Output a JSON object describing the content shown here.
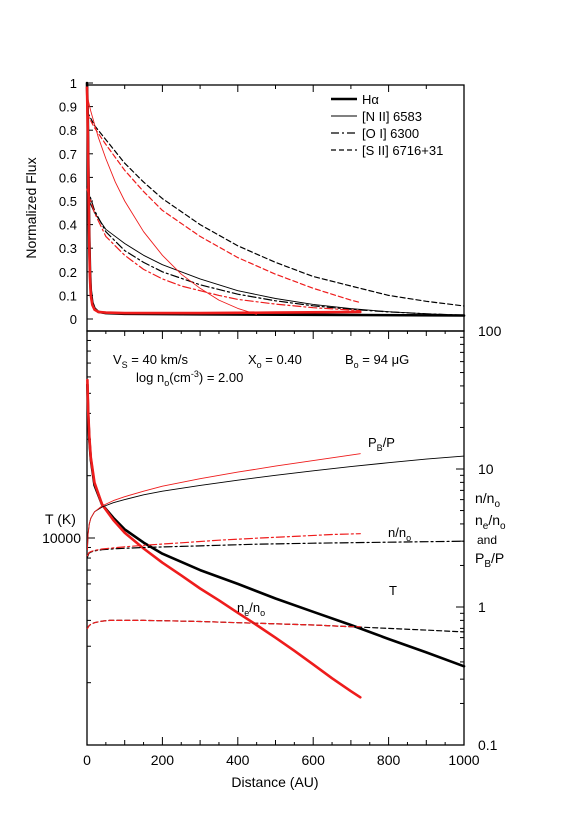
{
  "chart_data": [
    {
      "type": "line",
      "panel": "top",
      "ylabel": "Normalized Flux",
      "xlim": [
        0,
        1000
      ],
      "ylim": [
        0,
        1
      ],
      "y_ticks": [
        0,
        0.1,
        0.2,
        0.3,
        0.4,
        0.5,
        0.6,
        0.7,
        0.8,
        0.9,
        1
      ],
      "y_tick_labels": [
        "0",
        "0.1",
        "0.2",
        "0.3",
        "0.4",
        "0.5",
        "0.6",
        "0.7",
        "0.8",
        "0.9",
        "1"
      ],
      "legend_position": "top-right",
      "legend": [
        {
          "label": "Hα",
          "style": "thick"
        },
        {
          "label": "[N II] 6583",
          "style": "thin"
        },
        {
          "label": "[O I] 6300",
          "style": "dashdot"
        },
        {
          "label": "[S II] 6716+31",
          "style": "dashed"
        }
      ],
      "series": [
        {
          "line": "Hα",
          "group": "black",
          "color": "#000000",
          "style": "thick",
          "x": [
            0,
            2,
            4,
            6,
            8,
            10,
            14,
            20,
            30,
            50,
            100,
            300,
            600,
            1000
          ],
          "y": [
            1.0,
            0.85,
            0.6,
            0.35,
            0.2,
            0.12,
            0.07,
            0.045,
            0.03,
            0.025,
            0.022,
            0.02,
            0.018,
            0.015
          ]
        },
        {
          "line": "[N II] 6583",
          "group": "black",
          "color": "#000000",
          "style": "thin",
          "x": [
            0,
            20,
            50,
            100,
            150,
            200,
            300,
            400,
            500,
            600,
            700,
            800,
            900,
            1000
          ],
          "y": [
            0.52,
            0.45,
            0.38,
            0.32,
            0.27,
            0.23,
            0.17,
            0.12,
            0.087,
            0.062,
            0.044,
            0.031,
            0.022,
            0.016
          ]
        },
        {
          "line": "[O I] 6300",
          "group": "black",
          "color": "#000000",
          "style": "dashdot",
          "x": [
            0,
            20,
            50,
            100,
            150,
            200,
            300,
            400,
            500,
            600,
            700,
            800,
            900,
            1000
          ],
          "y": [
            0.56,
            0.46,
            0.37,
            0.29,
            0.24,
            0.2,
            0.145,
            0.105,
            0.077,
            0.056,
            0.041,
            0.03,
            0.022,
            0.016
          ]
        },
        {
          "line": "[S II] 6716+31",
          "group": "black",
          "color": "#000000",
          "style": "dashed",
          "x": [
            0,
            20,
            50,
            100,
            150,
            200,
            300,
            400,
            500,
            600,
            700,
            800,
            900,
            1000
          ],
          "y": [
            0.88,
            0.82,
            0.76,
            0.66,
            0.58,
            0.51,
            0.4,
            0.31,
            0.24,
            0.18,
            0.14,
            0.1,
            0.075,
            0.055
          ]
        },
        {
          "line": "Hα",
          "group": "red",
          "color": "#ee1c1c",
          "style": "thick",
          "x": [
            0,
            2,
            4,
            6,
            8,
            10,
            14,
            20,
            30,
            50,
            100,
            300,
            500,
            725
          ],
          "y": [
            0.98,
            0.8,
            0.55,
            0.3,
            0.17,
            0.1,
            0.06,
            0.04,
            0.03,
            0.027,
            0.025,
            0.025,
            0.027,
            0.03
          ]
        },
        {
          "line": "[N II] 6583",
          "group": "red",
          "color": "#ee1c1c",
          "style": "thin",
          "x": [
            0,
            10,
            30,
            50,
            75,
            100,
            150,
            200,
            250,
            300,
            350,
            400,
            450
          ],
          "y": [
            0.95,
            0.88,
            0.77,
            0.68,
            0.58,
            0.5,
            0.37,
            0.27,
            0.19,
            0.13,
            0.08,
            0.045,
            0.02
          ]
        },
        {
          "line": "[O I] 6300",
          "group": "red",
          "color": "#ee1c1c",
          "style": "dashdot",
          "x": [
            0,
            20,
            50,
            100,
            150,
            200,
            250,
            300,
            350,
            400,
            500,
            600,
            700,
            725
          ],
          "y": [
            0.55,
            0.45,
            0.35,
            0.27,
            0.21,
            0.17,
            0.14,
            0.12,
            0.1,
            0.083,
            0.063,
            0.048,
            0.038,
            0.035
          ]
        },
        {
          "line": "[S II] 6716+31",
          "group": "red",
          "color": "#ee1c1c",
          "style": "dashed",
          "x": [
            0,
            20,
            50,
            100,
            150,
            200,
            300,
            400,
            500,
            600,
            700,
            725
          ],
          "y": [
            0.87,
            0.81,
            0.74,
            0.63,
            0.54,
            0.46,
            0.35,
            0.26,
            0.19,
            0.13,
            0.08,
            0.07
          ]
        }
      ]
    },
    {
      "type": "line",
      "panel": "bottom",
      "xlabel": "Distance (AU)",
      "ylabel": "T (K)",
      "yscale": "log",
      "ylim": [
        1000,
        100000
      ],
      "xlim": [
        0,
        1000
      ],
      "x_ticks": [
        0,
        200,
        400,
        600,
        800,
        1000
      ],
      "x_tick_labels": [
        "0",
        "200",
        "400",
        "600",
        "800",
        "1000"
      ],
      "y_tick_labels_left": [
        {
          "value": 10000,
          "label": "10000"
        }
      ],
      "right_axis": {
        "scale": "log",
        "ylim": [
          0.1,
          100
        ],
        "ticks": [
          0.1,
          1,
          10,
          100
        ],
        "tick_labels": [
          "0.1",
          "1",
          "10",
          "100"
        ]
      },
      "right_axis_label_lines": [
        "n/n",
        "n",
        "and",
        "P"
      ],
      "annotations": {
        "vs": "V",
        "vs_sub": "S",
        "vs_val": " = 40 km/s",
        "xo": "X",
        "xo_sub": "o",
        "xo_val": " = 0.40",
        "bo": "B",
        "bo_sub": "o",
        "bo_val": " = 94 μG",
        "logn": "log n",
        "logn_sub": "o",
        "logn_mid": "(cm",
        "logn_sup": "-3",
        "logn_end": ") = 2.00",
        "pbp_main": "P",
        "pbp_sub": "B",
        "pbp_end": "/P",
        "nno_main": "n/n",
        "nno_sub": "o",
        "t_label": "T",
        "neno_main": "n",
        "neno_sub1": "e",
        "neno_mid": "/n",
        "neno_sub2": "o",
        "r_nno_main": "n/n",
        "r_nno_sub": "o",
        "r_neno_main": "n",
        "r_neno_sub1": "e",
        "r_neno_mid": "/n",
        "r_neno_sub2": "o",
        "r_and": "and",
        "r_pbp_main": "P",
        "r_pbp_sub": "B",
        "r_pbp_end": "/P"
      },
      "series": [
        {
          "line": "T",
          "group": "black",
          "color": "#000000",
          "style": "thick",
          "axis": "left",
          "x": [
            1,
            3,
            6,
            10,
            20,
            40,
            70,
            100,
            150,
            200,
            300,
            400,
            500,
            600,
            700,
            800,
            900,
            1000
          ],
          "y": [
            55000,
            40000,
            30000,
            24000,
            18000,
            14500,
            12500,
            11000,
            9500,
            8400,
            7000,
            6000,
            5100,
            4400,
            3800,
            3250,
            2800,
            2400
          ]
        },
        {
          "line": "T",
          "group": "red",
          "color": "#ee1c1c",
          "style": "thick",
          "axis": "left",
          "x": [
            1,
            3,
            6,
            10,
            20,
            40,
            70,
            100,
            150,
            200,
            250,
            300,
            350,
            400,
            450,
            500,
            550,
            600,
            650,
            700,
            725
          ],
          "y": [
            58000,
            42000,
            31000,
            24500,
            18500,
            14500,
            12200,
            10600,
            8900,
            7600,
            6600,
            5700,
            5000,
            4350,
            3800,
            3300,
            2850,
            2450,
            2100,
            1820,
            1700
          ]
        },
        {
          "line": "PB/P",
          "group": "black",
          "color": "#000000",
          "style": "thin",
          "axis": "right",
          "x": [
            1,
            3,
            6,
            10,
            20,
            40,
            70,
            100,
            150,
            200,
            300,
            400,
            500,
            600,
            700,
            800,
            900,
            1000
          ],
          "y": [
            2.6,
            3.4,
            4.0,
            4.4,
            4.9,
            5.3,
            5.7,
            6.0,
            6.5,
            6.9,
            7.6,
            8.3,
            9.0,
            9.7,
            10.4,
            11.1,
            11.8,
            12.4
          ]
        },
        {
          "line": "PB/P",
          "group": "red",
          "color": "#ee1c1c",
          "style": "thin",
          "axis": "right",
          "x": [
            1,
            3,
            6,
            10,
            20,
            40,
            70,
            100,
            150,
            200,
            300,
            400,
            500,
            600,
            700,
            725
          ],
          "y": [
            2.6,
            3.4,
            4.0,
            4.4,
            4.9,
            5.4,
            5.9,
            6.3,
            6.9,
            7.5,
            8.5,
            9.5,
            10.5,
            11.5,
            12.6,
            12.9
          ]
        },
        {
          "line": "n/no",
          "group": "black",
          "color": "#000000",
          "style": "dashdot",
          "axis": "right",
          "x": [
            1,
            5,
            10,
            20,
            40,
            80,
            150,
            250,
            350,
            450,
            600,
            800,
            1000
          ],
          "y": [
            2.3,
            2.45,
            2.5,
            2.55,
            2.6,
            2.65,
            2.7,
            2.75,
            2.8,
            2.85,
            2.9,
            2.95,
            3.0
          ]
        },
        {
          "line": "n/no",
          "group": "red",
          "color": "#ee1c1c",
          "style": "dashdot",
          "axis": "right",
          "x": [
            1,
            5,
            10,
            20,
            40,
            80,
            150,
            250,
            350,
            450,
            550,
            650,
            725
          ],
          "y": [
            2.35,
            2.48,
            2.52,
            2.57,
            2.63,
            2.7,
            2.8,
            2.92,
            3.05,
            3.15,
            3.25,
            3.35,
            3.4
          ]
        },
        {
          "line": "ne/no",
          "group": "black",
          "color": "#000000",
          "style": "dashed",
          "axis": "right",
          "x": [
            1,
            5,
            10,
            20,
            40,
            60,
            100,
            150,
            200,
            300,
            400,
            500,
            600,
            700,
            800,
            900,
            1000
          ],
          "y": [
            0.7,
            0.73,
            0.75,
            0.77,
            0.79,
            0.8,
            0.8,
            0.8,
            0.795,
            0.785,
            0.77,
            0.755,
            0.74,
            0.72,
            0.7,
            0.68,
            0.66
          ]
        },
        {
          "line": "ne/no",
          "group": "red",
          "color": "#ee1c1c",
          "style": "dashed",
          "axis": "right",
          "x": [
            1,
            5,
            10,
            20,
            40,
            60,
            100,
            150,
            200,
            300,
            400,
            500,
            600,
            700,
            725
          ],
          "y": [
            0.7,
            0.73,
            0.75,
            0.77,
            0.79,
            0.8,
            0.8,
            0.8,
            0.795,
            0.785,
            0.77,
            0.755,
            0.74,
            0.72,
            0.72
          ]
        }
      ]
    }
  ]
}
